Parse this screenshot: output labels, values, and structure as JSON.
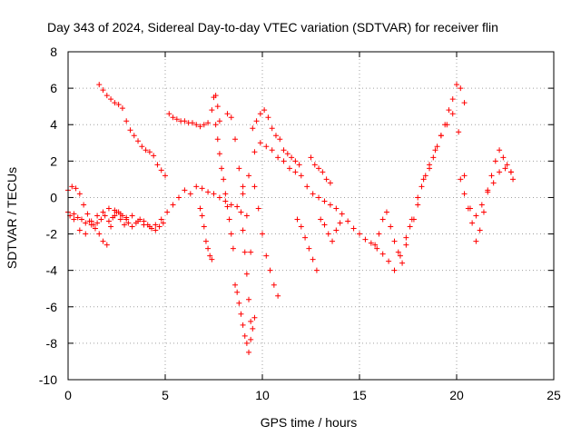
{
  "chart_data": {
    "type": "scatter",
    "title": "Day 343 of 2024, Sidereal Day-to-day VTEC variation (SDTVAR) for receiver flin",
    "xlabel": "GPS time / hours",
    "ylabel": "SDTVAR / TECUs",
    "xlim": [
      0,
      25
    ],
    "ylim": [
      -10,
      8
    ],
    "xticks": [
      0,
      5,
      10,
      15,
      20,
      25
    ],
    "yticks": [
      -10,
      -8,
      -6,
      -4,
      -2,
      0,
      2,
      4,
      6,
      8
    ],
    "marker": "plus",
    "color": "#ff0000",
    "grid": true,
    "series": [
      {
        "x": [
          0.0,
          0.3,
          0.6,
          0.9,
          1.2,
          1.5,
          1.8,
          2.1,
          2.4,
          2.7,
          3.0,
          3.3,
          3.6,
          3.9,
          4.2,
          4.5,
          4.8,
          5.1,
          5.4,
          5.7,
          6.0,
          6.3,
          6.6,
          6.9,
          7.2,
          7.5,
          7.8,
          8.1,
          8.4,
          8.7,
          9.0,
          9.3,
          9.6,
          9.9,
          10.2,
          10.5,
          10.8,
          11.1,
          11.4,
          11.7,
          12.0,
          12.3,
          12.6,
          12.9,
          13.2,
          13.5,
          13.8,
          14.1,
          14.4,
          14.7,
          15.0,
          15.3,
          15.6,
          15.9,
          16.2,
          16.5,
          16.8,
          17.1,
          17.4,
          17.7,
          18.0,
          18.3,
          18.6,
          18.9,
          19.2,
          19.5,
          19.8,
          20.1,
          20.4,
          20.7,
          21.0,
          21.3,
          21.6,
          21.9,
          22.2,
          22.5,
          22.8
        ],
        "y": [
          -0.8,
          -1.2,
          -1.8,
          -2.0,
          -1.5,
          -1.0,
          -0.8,
          -0.6,
          -0.7,
          -0.9,
          -1.2,
          -1.0,
          -1.3,
          -1.5,
          -1.6,
          -1.5,
          -1.2,
          -0.8,
          -0.4,
          0.0,
          0.4,
          0.2,
          0.6,
          0.5,
          0.3,
          0.2,
          0.0,
          -0.2,
          -0.4,
          -0.5,
          0.2,
          1.2,
          2.5,
          3.0,
          2.8,
          2.6,
          2.2,
          2.0,
          1.6,
          1.4,
          1.2,
          0.6,
          0.2,
          0.0,
          -0.2,
          -0.4,
          -0.6,
          -0.9,
          -1.3,
          -1.7,
          -2.0,
          -2.3,
          -2.5,
          -2.8,
          -3.1,
          -3.5,
          -4.0,
          -3.2,
          -2.2,
          -1.2,
          0.0,
          1.0,
          1.8,
          2.6,
          3.4,
          4.0,
          4.6,
          3.6,
          1.2,
          -0.6,
          -1.0,
          -0.4,
          0.3,
          0.8,
          1.4,
          1.6,
          1.4
        ]
      },
      {
        "x": [
          0.0,
          0.2,
          0.4,
          0.6,
          0.8,
          1.0,
          1.2,
          1.4,
          1.6,
          1.8,
          2.0,
          2.2,
          2.4,
          2.6,
          2.8,
          3.0
        ],
        "y": [
          0.4,
          0.6,
          0.5,
          0.2,
          -0.4,
          -0.9,
          -1.3,
          -1.7,
          -2.0,
          -2.4,
          -2.6,
          -1.6,
          -1.0,
          -0.8,
          -1.0,
          -1.1
        ]
      },
      {
        "x": [
          0.1,
          0.3,
          0.5,
          0.7,
          0.9,
          1.1,
          1.3,
          1.5,
          1.7,
          1.9,
          2.1,
          2.3,
          2.5,
          2.7,
          2.9,
          3.1,
          3.3,
          3.5,
          3.7,
          3.9,
          4.1,
          4.3,
          4.5,
          4.7,
          4.9
        ],
        "y": [
          -1.0,
          -0.9,
          -1.1,
          -1.2,
          -1.4,
          -1.3,
          -1.5,
          -1.4,
          -1.2,
          -1.0,
          -1.3,
          -1.1,
          -0.8,
          -1.2,
          -1.5,
          -1.4,
          -1.6,
          -1.4,
          -1.2,
          -1.3,
          -1.5,
          -1.7,
          -1.8,
          -1.6,
          -1.4
        ]
      },
      {
        "x": [
          1.6,
          1.8,
          2.0,
          2.2,
          2.4,
          2.6,
          2.8,
          3.0,
          3.2,
          3.4,
          3.6,
          3.8,
          4.0,
          4.2,
          4.4,
          4.6,
          4.8,
          5.0
        ],
        "y": [
          6.2,
          5.9,
          5.6,
          5.4,
          5.2,
          5.1,
          4.9,
          4.2,
          3.7,
          3.4,
          3.1,
          2.8,
          2.6,
          2.5,
          2.3,
          1.8,
          1.5,
          1.2
        ]
      },
      {
        "x": [
          5.2,
          5.4,
          5.6,
          5.8,
          6.0,
          6.2,
          6.4,
          6.6,
          6.8,
          7.0,
          7.2,
          7.4,
          7.5,
          7.6,
          7.7,
          7.8
        ],
        "y": [
          4.6,
          4.4,
          4.3,
          4.2,
          4.2,
          4.1,
          4.1,
          4.0,
          3.9,
          4.0,
          4.1,
          4.8,
          5.5,
          5.6,
          5.0,
          4.2
        ]
      },
      {
        "x": [
          7.6,
          7.7,
          7.8,
          7.9,
          8.0,
          8.1,
          8.2,
          8.3,
          8.4,
          8.5
        ],
        "y": [
          4.0,
          3.2,
          2.4,
          1.6,
          1.0,
          0.2,
          -0.5,
          -1.2,
          -2.0,
          -2.8
        ]
      },
      {
        "x": [
          6.8,
          6.9,
          7.0,
          7.1,
          7.2,
          7.3,
          7.4
        ],
        "y": [
          -0.6,
          -1.0,
          -1.6,
          -2.4,
          -2.8,
          -3.2,
          -3.4
        ]
      },
      {
        "x": [
          8.2,
          8.4,
          8.6,
          8.8,
          9.0,
          9.2,
          9.4
        ],
        "y": [
          4.6,
          4.4,
          3.2,
          1.6,
          0.6,
          -1.0,
          -3.0
        ]
      },
      {
        "x": [
          8.6,
          8.7,
          8.8,
          8.9,
          9.0,
          9.1,
          9.2,
          9.3,
          9.4,
          9.5,
          9.6
        ],
        "y": [
          -4.8,
          -5.2,
          -5.8,
          -6.4,
          -7.0,
          -7.6,
          -8.0,
          -8.5,
          -7.8,
          -7.2,
          -6.6
        ]
      },
      {
        "x": [
          8.9,
          9.0,
          9.1,
          9.2,
          9.3,
          9.4
        ],
        "y": [
          -0.8,
          -1.8,
          -3.0,
          -4.2,
          -5.6,
          -6.8
        ]
      },
      {
        "x": [
          9.6,
          9.8,
          10.0,
          10.2,
          10.4,
          10.6,
          10.8
        ],
        "y": [
          0.6,
          -0.6,
          -2.0,
          -3.2,
          -4.0,
          -4.8,
          -5.4
        ]
      },
      {
        "x": [
          9.5,
          9.7,
          9.9,
          10.1,
          10.3,
          10.5,
          10.7,
          10.9,
          11.1,
          11.3,
          11.5,
          11.7,
          11.9
        ],
        "y": [
          3.8,
          4.2,
          4.6,
          4.8,
          4.4,
          3.8,
          3.4,
          3.2,
          2.6,
          2.4,
          2.2,
          2.0,
          1.8
        ]
      },
      {
        "x": [
          11.8,
          12.0,
          12.2,
          12.4,
          12.6,
          12.8,
          13.0,
          13.2,
          13.4,
          13.6,
          13.8,
          14.0
        ],
        "y": [
          -1.2,
          -1.6,
          -2.2,
          -2.8,
          -3.4,
          -4.0,
          -1.2,
          -1.5,
          -2.0,
          -2.4,
          -1.8,
          -1.4
        ]
      },
      {
        "x": [
          12.5,
          12.7,
          12.9,
          13.1,
          13.3,
          13.5
        ],
        "y": [
          2.2,
          1.8,
          1.6,
          1.4,
          1.0,
          0.8
        ]
      },
      {
        "x": [
          15.8,
          16.0,
          16.2,
          16.4,
          16.6,
          16.8,
          17.0,
          17.2,
          17.4,
          17.6,
          17.8,
          18.0,
          18.2,
          18.4,
          18.6,
          18.8,
          19.0,
          19.2,
          19.4,
          19.6,
          19.8,
          20.0,
          20.2,
          20.4
        ],
        "y": [
          -2.6,
          -2.0,
          -1.2,
          -0.8,
          -1.6,
          -2.4,
          -3.0,
          -3.6,
          -2.6,
          -1.6,
          -1.2,
          -0.4,
          0.6,
          1.2,
          1.6,
          2.2,
          2.8,
          3.4,
          4.0,
          4.8,
          5.4,
          6.2,
          6.0,
          5.2
        ]
      },
      {
        "x": [
          20.2,
          20.4,
          20.6,
          20.8,
          21.0,
          21.2,
          21.4,
          21.6,
          21.8,
          22.0,
          22.2,
          22.4,
          22.6,
          22.8,
          22.9
        ],
        "y": [
          1.0,
          0.2,
          -0.6,
          -1.4,
          -2.4,
          -1.8,
          -0.8,
          0.4,
          1.2,
          2.0,
          2.6,
          2.2,
          1.8,
          1.4,
          1.0
        ]
      }
    ]
  }
}
